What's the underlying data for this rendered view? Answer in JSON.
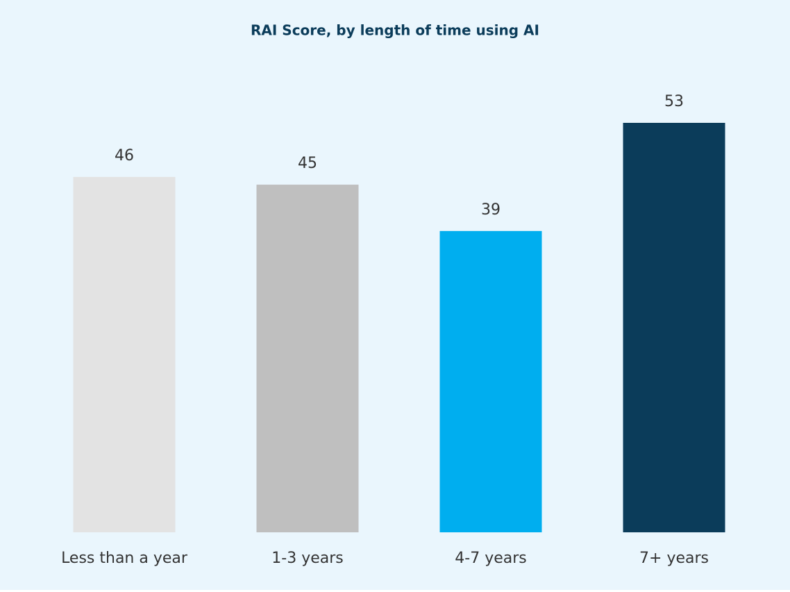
{
  "chart_data": {
    "type": "bar",
    "title": "RAI Score, by length of time using AI",
    "categories": [
      "Less than a year",
      "1-3 years",
      "4-7 years",
      "7+ years"
    ],
    "values": [
      46,
      45,
      39,
      53
    ],
    "colors": [
      "#e3e3e3",
      "#bfbfbf",
      "#00aeef",
      "#0b3c5a"
    ]
  }
}
